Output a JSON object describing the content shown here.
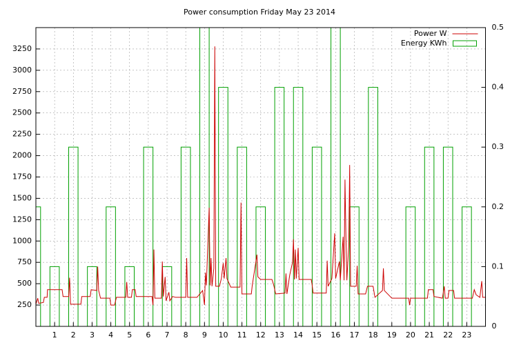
{
  "chart_data": {
    "type": "line",
    "title": "Power consumption Friday May 23 2014",
    "xlim": [
      0,
      24
    ],
    "xticks": [
      1,
      2,
      3,
      4,
      5,
      6,
      7,
      8,
      9,
      10,
      11,
      12,
      13,
      14,
      15,
      16,
      17,
      18,
      19,
      20,
      21,
      22,
      23
    ],
    "ylim": [
      0,
      3500
    ],
    "yticks": [
      250,
      500,
      750,
      1000,
      1250,
      1500,
      1750,
      2000,
      2250,
      2500,
      2750,
      3000,
      3250
    ],
    "y2lim": [
      0,
      0.5
    ],
    "y2ticks": [
      0,
      0.1,
      0.2,
      0.3,
      0.4,
      0.5
    ],
    "grid": true,
    "legend": "top-right",
    "series": [
      {
        "name": "Power W",
        "type": "line",
        "color": "#cc0000",
        "x": [
          0,
          0.1,
          0.15,
          0.4,
          0.45,
          0.6,
          0.62,
          1.4,
          1.45,
          1.75,
          1.8,
          1.85,
          2.4,
          2.45,
          2.9,
          2.95,
          3.25,
          3.3,
          3.35,
          3.45,
          3.95,
          4.0,
          4.2,
          4.3,
          4.8,
          4.85,
          4.9,
          5.1,
          5.15,
          5.3,
          5.35,
          6.2,
          6.25,
          6.3,
          6.35,
          6.7,
          6.75,
          6.8,
          6.9,
          6.95,
          7.1,
          7.15,
          7.3,
          7.45,
          8.0,
          8.05,
          8.1,
          8.6,
          8.9,
          9.0,
          9.05,
          9.1,
          9.25,
          9.3,
          9.35,
          9.4,
          9.5,
          9.55,
          9.6,
          9.8,
          9.9,
          10.0,
          10.05,
          10.15,
          10.2,
          10.4,
          10.9,
          10.95,
          11.0,
          11.5,
          11.55,
          11.8,
          11.85,
          12.0,
          12.6,
          12.7,
          12.8,
          13.3,
          13.35,
          13.4,
          13.55,
          13.7,
          13.75,
          13.8,
          13.85,
          13.9,
          14.0,
          14.05,
          14.7,
          14.75,
          14.8,
          15.5,
          15.55,
          15.6,
          15.8,
          15.95,
          16.0,
          16.2,
          16.25,
          16.4,
          16.45,
          16.5,
          16.55,
          16.6,
          16.7,
          16.75,
          16.8,
          17.1,
          17.15,
          17.2,
          17.6,
          17.7,
          18.0,
          18.1,
          18.5,
          18.55,
          18.6,
          19.0,
          19.9,
          19.95,
          20.0,
          20.9,
          20.95,
          21.2,
          21.25,
          21.7,
          21.8,
          21.85,
          22.0,
          22.05,
          22.3,
          22.35,
          23.3,
          23.4,
          23.5,
          23.7,
          23.8,
          23.85,
          24.0
        ],
        "values": [
          260,
          330,
          270,
          280,
          340,
          340,
          430,
          430,
          350,
          350,
          570,
          260,
          260,
          350,
          350,
          430,
          420,
          700,
          420,
          330,
          330,
          250,
          250,
          340,
          340,
          520,
          340,
          340,
          430,
          430,
          350,
          350,
          250,
          900,
          330,
          330,
          760,
          350,
          580,
          300,
          400,
          300,
          350,
          340,
          340,
          800,
          340,
          340,
          420,
          250,
          630,
          480,
          1390,
          480,
          800,
          470,
          680,
          3280,
          470,
          470,
          560,
          740,
          560,
          800,
          560,
          460,
          460,
          1450,
          380,
          380,
          480,
          840,
          580,
          550,
          550,
          480,
          380,
          390,
          620,
          380,
          600,
          750,
          1020,
          550,
          900,
          560,
          920,
          550,
          550,
          480,
          390,
          390,
          770,
          470,
          560,
          1090,
          560,
          760,
          540,
          1050,
          540,
          1720,
          1060,
          540,
          950,
          1890,
          470,
          470,
          710,
          380,
          380,
          470,
          470,
          340,
          420,
          680,
          420,
          330,
          330,
          250,
          330,
          330,
          430,
          430,
          350,
          330,
          470,
          330,
          330,
          420,
          420,
          330,
          330,
          430,
          370,
          340,
          530,
          340,
          340
        ]
      },
      {
        "name": "Energy KWh",
        "type": "bar",
        "axis": "y2",
        "color": "#00a000",
        "x": [
          0,
          1,
          2,
          3,
          4,
          5,
          6,
          7,
          8,
          9,
          10,
          11,
          12,
          13,
          14,
          15,
          16,
          17,
          18,
          19,
          20,
          21,
          22,
          23
        ],
        "values": [
          0.2,
          0.1,
          0.3,
          0.1,
          0.2,
          0.1,
          0.3,
          0.1,
          0.3,
          0.5,
          0.4,
          0.3,
          0.2,
          0.4,
          0.4,
          0.3,
          0.5,
          0.2,
          0.4,
          0,
          0.2,
          0.3,
          0.3,
          0.2
        ]
      }
    ]
  }
}
